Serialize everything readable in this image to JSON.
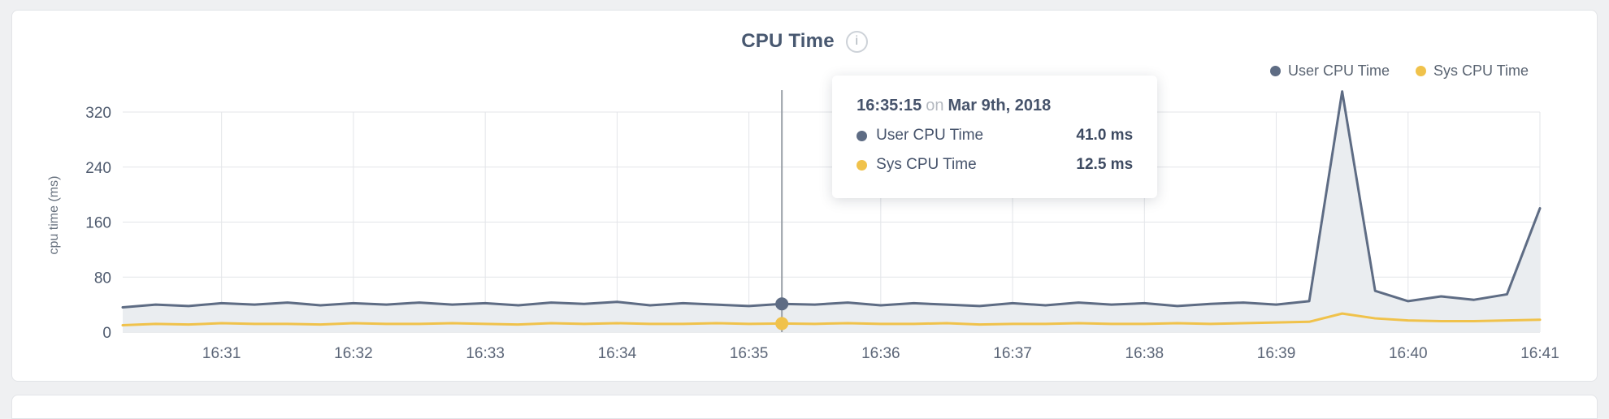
{
  "header": {
    "info_glyph": "i"
  },
  "tooltip": {
    "time": "16:35:15",
    "separator": "on",
    "date": "Mar 9th, 2018",
    "rows": [
      {
        "label": "User CPU Time",
        "value": "41.0 ms"
      },
      {
        "label": "Sys CPU Time",
        "value": "12.5 ms"
      }
    ]
  },
  "chart_data": {
    "type": "area",
    "title": "CPU Time",
    "ylabel": "cpu time (ms)",
    "ylim": [
      0,
      320
    ],
    "yticks": [
      0,
      80,
      160,
      240,
      320
    ],
    "grid": true,
    "legend_position": "top-right",
    "area_fill": "#eaedf0",
    "x": [
      "16:30:15",
      "16:30:30",
      "16:30:45",
      "16:31:00",
      "16:31:15",
      "16:31:30",
      "16:31:45",
      "16:32:00",
      "16:32:15",
      "16:32:30",
      "16:32:45",
      "16:33:00",
      "16:33:15",
      "16:33:30",
      "16:33:45",
      "16:34:00",
      "16:34:15",
      "16:34:30",
      "16:34:45",
      "16:35:00",
      "16:35:15",
      "16:35:30",
      "16:35:45",
      "16:36:00",
      "16:36:15",
      "16:36:30",
      "16:36:45",
      "16:37:00",
      "16:37:15",
      "16:37:30",
      "16:37:45",
      "16:38:00",
      "16:38:15",
      "16:38:30",
      "16:38:45",
      "16:39:00",
      "16:39:15",
      "16:39:30",
      "16:39:45",
      "16:40:00",
      "16:40:15",
      "16:40:30",
      "16:40:45",
      "16:41:00"
    ],
    "series": [
      {
        "name": "User CPU Time",
        "color": "#5e6c84",
        "values": [
          36,
          40,
          38,
          42,
          40,
          43,
          39,
          42,
          40,
          43,
          40,
          42,
          39,
          43,
          41,
          44,
          39,
          42,
          40,
          38,
          41,
          40,
          43,
          39,
          42,
          40,
          38,
          42,
          39,
          43,
          40,
          42,
          38,
          41,
          43,
          40,
          45,
          350,
          60,
          45,
          52,
          47,
          55,
          180
        ]
      },
      {
        "name": "Sys CPU Time",
        "color": "#f0c24b",
        "values": [
          10,
          12,
          11,
          13,
          12,
          12,
          11,
          13,
          12,
          12,
          13,
          12,
          11,
          13,
          12,
          13,
          12,
          12,
          13,
          12,
          12.5,
          12,
          13,
          12,
          12,
          13,
          11,
          12,
          12,
          13,
          12,
          12,
          13,
          12,
          13,
          14,
          15,
          27,
          20,
          17,
          16,
          16,
          17,
          18
        ]
      }
    ],
    "hover": {
      "index": 20,
      "time": "16:35:15",
      "user_value_ms": 41.0,
      "sys_value_ms": 12.5
    }
  }
}
